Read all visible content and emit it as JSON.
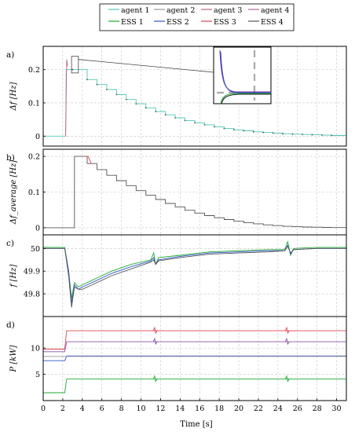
{
  "legend": {
    "entries": [
      {
        "label": "agent 1",
        "color": "#4fc8b8",
        "style": "solid"
      },
      {
        "label": "agent 2",
        "color": "#9a9a9a",
        "style": "solid"
      },
      {
        "label": "agent 3",
        "color": "#c0608a",
        "style": "solid"
      },
      {
        "label": "agent 4",
        "color": "#b06a9a",
        "style": "solid"
      },
      {
        "label": "ESS 1",
        "color": "#22aa33",
        "style": "solid"
      },
      {
        "label": "ESS 2",
        "color": "#3355cc",
        "style": "solid"
      },
      {
        "label": "ESS 3",
        "color": "#dd4455",
        "style": "solid"
      },
      {
        "label": "ESS 4",
        "color": "#555555",
        "style": "solid"
      }
    ]
  },
  "xlabel": "Time [s]",
  "chart_data": [
    {
      "panel_label": "a)",
      "type": "line",
      "ylabel": "Δf [Hz]",
      "xlim": [
        0,
        31
      ],
      "ylim": [
        -0.03,
        0.27
      ],
      "yticks": [
        "0",
        "0.1",
        "0.2"
      ],
      "grid": true,
      "zoom_inset": {
        "x_range": [
          2.9,
          3.6
        ],
        "y_range": [
          0.19,
          0.24
        ]
      },
      "series": [
        {
          "color": "#4fc8b8",
          "x": [
            0,
            2.3,
            2.35,
            3,
            3,
            4.5,
            4.5,
            5.5,
            5.5,
            6.5,
            6.5,
            7.5,
            7.5,
            8.5,
            8.5,
            9.5,
            9.5,
            10.5,
            10.5,
            11.5,
            11.5,
            12.5,
            12.5,
            13.5,
            13.5,
            14.5,
            14.5,
            15.5,
            15.5,
            16.5,
            16.5,
            17.5,
            17.5,
            18.5,
            18.5,
            19.5,
            19.5,
            20.5,
            20.5,
            21.5,
            21.5,
            22.5,
            22.5,
            23.5,
            23.5,
            24.5,
            24.5,
            25.5,
            25.5,
            26.5,
            26.5,
            27.5,
            27.5,
            28.5,
            28.5,
            29.5,
            29.5,
            31
          ],
          "y": [
            0,
            0,
            0.2,
            0.2,
            0.2,
            0.2,
            0.17,
            0.17,
            0.155,
            0.155,
            0.14,
            0.14,
            0.125,
            0.125,
            0.11,
            0.11,
            0.097,
            0.097,
            0.085,
            0.085,
            0.074,
            0.074,
            0.064,
            0.064,
            0.055,
            0.055,
            0.047,
            0.047,
            0.04,
            0.04,
            0.034,
            0.034,
            0.028,
            0.028,
            0.023,
            0.023,
            0.019,
            0.019,
            0.016,
            0.016,
            0.013,
            0.013,
            0.011,
            0.011,
            0.009,
            0.009,
            0.007,
            0.007,
            0.006,
            0.006,
            0.005,
            0.005,
            0.004,
            0.004,
            0.003,
            0.003,
            0.002,
            0.002
          ]
        },
        {
          "color": "#c0608a",
          "x": [
            2.3,
            2.4,
            2.5
          ],
          "y": [
            0,
            0.23,
            0.21
          ]
        }
      ]
    },
    {
      "panel_label": "b)",
      "type": "line",
      "ylabel": "Δf_average [Hz]",
      "xlim": [
        0,
        31
      ],
      "ylim": [
        -0.02,
        0.22
      ],
      "yticks": [
        "0",
        "0.1",
        "0.2"
      ],
      "grid": true,
      "series": [
        {
          "color": "#555555",
          "x": [
            0,
            3.2,
            3.2,
            4.5,
            4.5,
            5.5,
            5.5,
            6.5,
            6.5,
            7.5,
            7.5,
            8.5,
            8.5,
            9.5,
            9.5,
            10.5,
            10.5,
            11.5,
            11.5,
            12.5,
            12.5,
            13.5,
            13.5,
            14.5,
            14.5,
            15.5,
            15.5,
            16.5,
            16.5,
            17.5,
            17.5,
            18.5,
            18.5,
            19.5,
            19.5,
            20.5,
            20.5,
            21.5,
            21.5,
            22.5,
            22.5,
            23.5,
            23.5,
            24.5,
            24.5,
            25.5,
            25.5,
            26.5,
            26.5,
            27.5,
            27.5,
            28.5,
            28.5,
            29.5,
            29.5,
            31
          ],
          "y": [
            0,
            0,
            0.2,
            0.2,
            0.18,
            0.18,
            0.163,
            0.163,
            0.147,
            0.147,
            0.132,
            0.132,
            0.118,
            0.118,
            0.104,
            0.104,
            0.091,
            0.091,
            0.079,
            0.079,
            0.068,
            0.068,
            0.058,
            0.058,
            0.049,
            0.049,
            0.041,
            0.041,
            0.034,
            0.034,
            0.028,
            0.028,
            0.023,
            0.023,
            0.018,
            0.018,
            0.014,
            0.014,
            0.011,
            0.011,
            0.008,
            0.008,
            0.006,
            0.006,
            0.004,
            0.004,
            0.003,
            0.003,
            0.002,
            0.002,
            0.0015,
            0.0015,
            0.001,
            0.001,
            0.0005,
            0.0005
          ]
        },
        {
          "color": "#dd4455",
          "x": [
            4.3,
            4.6,
            4.9
          ],
          "y": [
            0.2,
            0.2,
            0.18
          ]
        }
      ]
    },
    {
      "panel_label": "c)",
      "type": "line",
      "ylabel": "f [Hz]",
      "xlim": [
        0,
        31
      ],
      "ylim": [
        49.7,
        50.06
      ],
      "yticks": [
        "49.8",
        "49.9",
        "50"
      ],
      "grid": true,
      "series": [
        {
          "color": "#22aa33",
          "x": [
            0,
            2.2,
            2.6,
            2.9,
            3.2,
            3.6,
            4,
            5,
            7,
            9,
            11,
            11.3,
            11.5,
            11.8,
            14,
            17,
            20,
            23,
            24.7,
            25,
            25.3,
            25.6,
            28,
            31
          ],
          "y": [
            50.005,
            50.005,
            49.9,
            49.78,
            49.85,
            49.83,
            49.84,
            49.86,
            49.9,
            49.93,
            49.95,
            49.98,
            49.93,
            49.96,
            49.97,
            49.985,
            49.99,
            49.995,
            49.995,
            50.03,
            49.97,
            50.0,
            50.005,
            50.005
          ]
        },
        {
          "color": "#3355cc",
          "x": [
            0,
            2.2,
            2.6,
            2.9,
            3.2,
            3.6,
            4,
            5,
            7,
            9,
            11,
            11.3,
            11.5,
            11.8,
            14,
            17,
            20,
            23,
            24.7,
            25,
            25.3,
            25.6,
            28,
            31
          ],
          "y": [
            50.0,
            50.0,
            49.9,
            49.76,
            49.84,
            49.82,
            49.83,
            49.85,
            49.89,
            49.92,
            49.945,
            49.96,
            49.93,
            49.95,
            49.965,
            49.98,
            49.985,
            49.99,
            49.99,
            50.015,
            49.975,
            49.995,
            50.0,
            50.0
          ]
        },
        {
          "color": "#555555",
          "x": [
            0,
            2.2,
            2.6,
            2.9,
            3.2,
            3.6,
            4,
            5,
            7,
            9,
            11,
            11.3,
            11.5,
            11.8,
            14,
            17,
            20,
            23,
            24.7,
            25,
            25.3,
            25.6,
            28,
            31
          ],
          "y": [
            50.0,
            50.0,
            49.88,
            49.74,
            49.83,
            49.82,
            49.82,
            49.84,
            49.88,
            49.91,
            49.94,
            49.95,
            49.93,
            49.945,
            49.96,
            49.975,
            49.98,
            49.985,
            49.99,
            50.01,
            49.98,
            49.995,
            50.0,
            50.0
          ]
        }
      ]
    },
    {
      "panel_label": "d)",
      "type": "line",
      "ylabel": "P [kW]",
      "xlim": [
        0,
        31
      ],
      "ylim": [
        0,
        16
      ],
      "yticks": [
        "5",
        "10"
      ],
      "grid": true,
      "series": [
        {
          "color": "#dd4455",
          "x": [
            0,
            2.2,
            2.4,
            31
          ],
          "y": [
            9.8,
            9.8,
            13.3,
            13.3
          ],
          "blips": [
            11.4,
            24.9
          ]
        },
        {
          "color": "#8855aa",
          "x": [
            0,
            2.2,
            2.4,
            31
          ],
          "y": [
            9.3,
            9.3,
            11.2,
            11.2
          ],
          "blips": [
            11.4,
            24.9
          ]
        },
        {
          "color": "#3355cc",
          "x": [
            0,
            2.2,
            2.4,
            31
          ],
          "y": [
            7.6,
            7.6,
            8.5,
            8.5
          ],
          "blips": []
        },
        {
          "color": "#999999",
          "x": [
            0,
            2.2,
            2.4,
            31
          ],
          "y": [
            8.4,
            8.4,
            8.4,
            8.4
          ],
          "blips": []
        },
        {
          "color": "#22aa33",
          "x": [
            0,
            2.2,
            2.4,
            31
          ],
          "y": [
            1.5,
            1.5,
            4.1,
            4.1
          ],
          "blips": [
            11.4,
            24.9
          ]
        }
      ]
    }
  ],
  "xticks": [
    "0",
    "2",
    "4",
    "6",
    "8",
    "10",
    "12",
    "14",
    "16",
    "18",
    "20",
    "22",
    "24",
    "26",
    "28",
    "30"
  ]
}
